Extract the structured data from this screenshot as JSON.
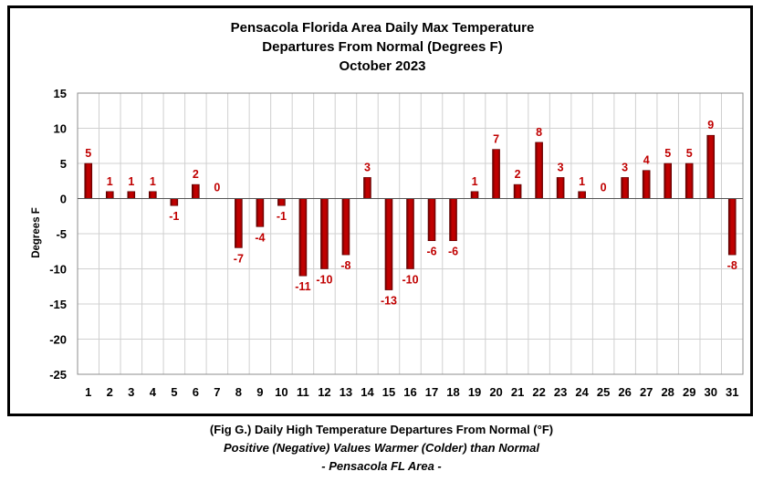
{
  "chart_data": {
    "type": "bar",
    "title_lines": [
      "Pensacola Florida Area Daily Max Temperature",
      "Departures From Normal (Degrees F)",
      "October 2023"
    ],
    "xlabel": "",
    "ylabel": "Degrees F",
    "ylim": [
      -25,
      15
    ],
    "yticks": [
      15,
      10,
      5,
      0,
      -5,
      -10,
      -15,
      -20,
      -25
    ],
    "grid": true,
    "categories": [
      "1",
      "2",
      "3",
      "4",
      "5",
      "6",
      "7",
      "8",
      "9",
      "10",
      "11",
      "12",
      "13",
      "14",
      "15",
      "16",
      "17",
      "18",
      "19",
      "20",
      "21",
      "22",
      "23",
      "24",
      "25",
      "26",
      "27",
      "28",
      "29",
      "30",
      "31"
    ],
    "values": [
      5,
      1,
      1,
      1,
      -1,
      2,
      0,
      -7,
      -4,
      -1,
      -11,
      -10,
      -8,
      3,
      -13,
      -10,
      -6,
      -6,
      1,
      7,
      2,
      8,
      3,
      1,
      0,
      3,
      4,
      5,
      5,
      9,
      -8
    ],
    "bar_color": "#c00000",
    "bar_dark_color": "#5a0000",
    "label_color": "#c00000"
  },
  "caption": {
    "line1": "(Fig G.) Daily High Temperature Departures From Normal (°F)",
    "line2": "Positive (Negative) Values Warmer (Colder) than Normal",
    "line3": "- Pensacola FL Area -"
  }
}
